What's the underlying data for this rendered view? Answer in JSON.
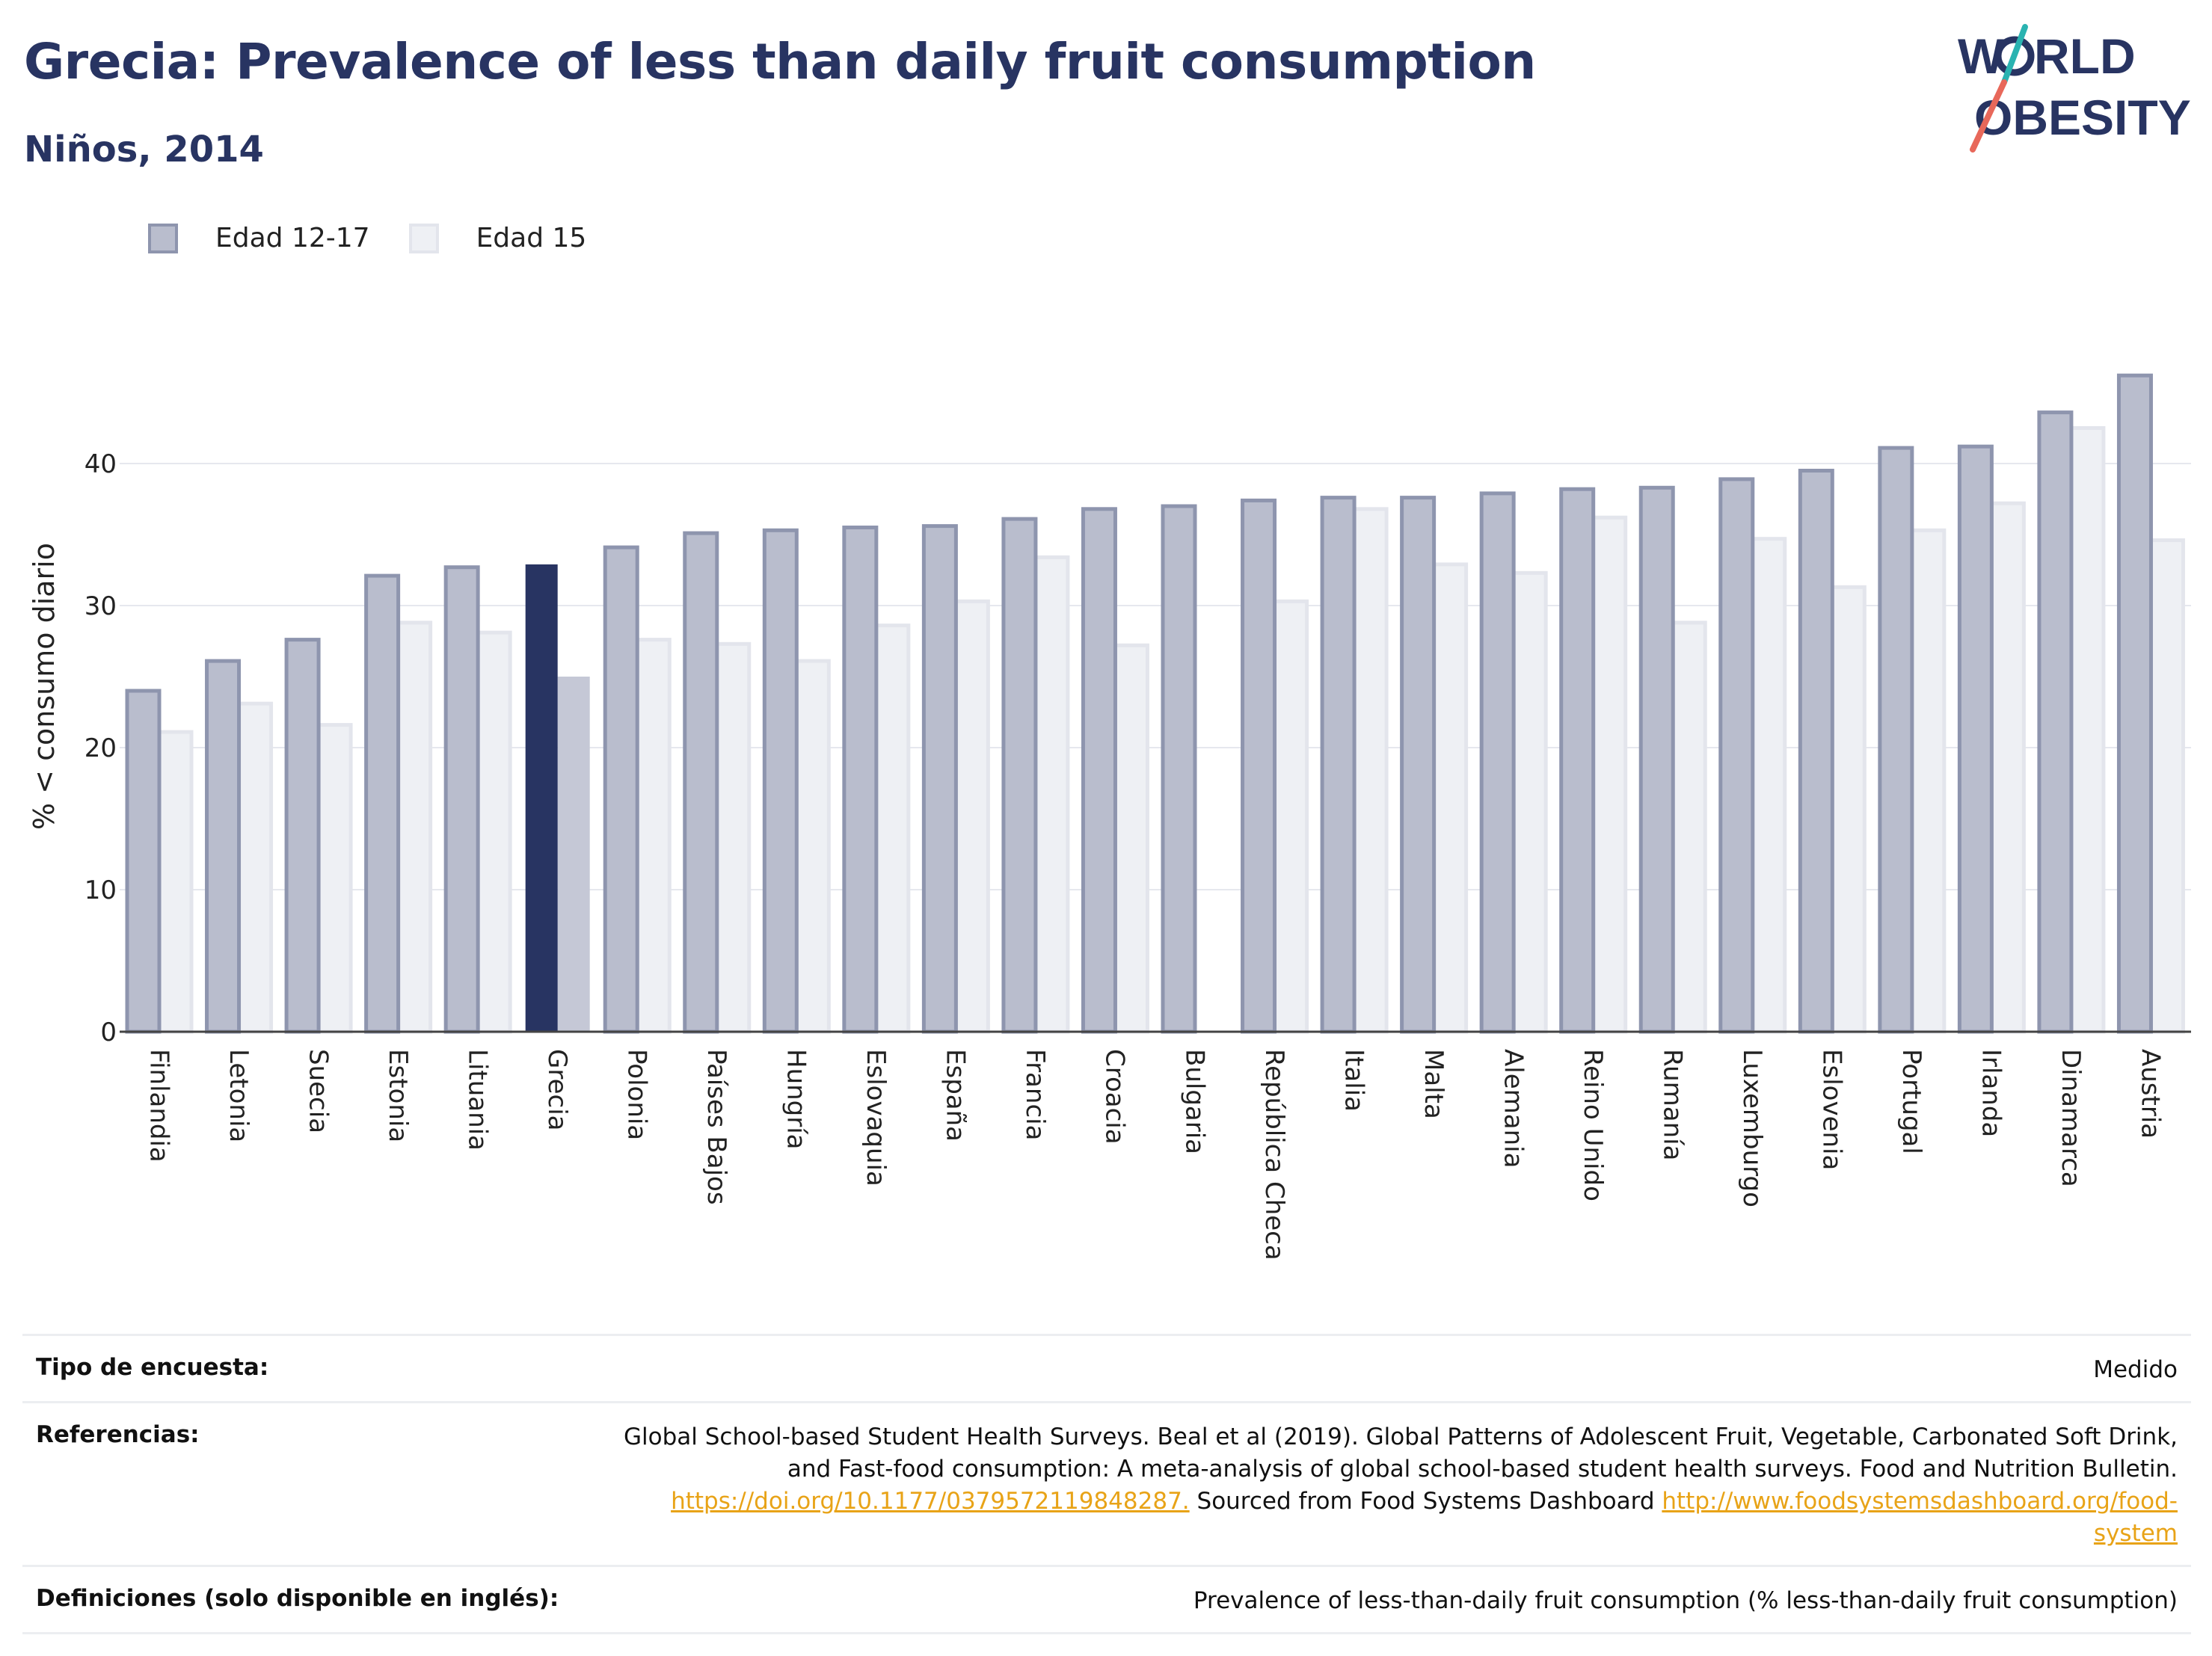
{
  "header": {
    "title": "Grecia: Prevalence of less than daily fruit consumption",
    "subtitle": "Niños, 2014",
    "logo_text": [
      "W",
      "RLD",
      "OBESITY"
    ]
  },
  "colors": {
    "series1_fill": "#b9bdcd",
    "series1_stroke": "#8e95ae",
    "series2_fill": "#eef0f4",
    "series2_stroke": "#e3e5ec",
    "highlight1": "#283462",
    "highlight2": "#c5c8d6",
    "title": "#283462",
    "link": "#e8a317",
    "logo_teal": "#2ab3b1",
    "logo_coral": "#e8685a"
  },
  "chart_data": {
    "type": "bar",
    "ylabel": "% < consumo diario",
    "xlabel": "",
    "ylim": [
      0,
      50
    ],
    "yticks": [
      0,
      10,
      20,
      30,
      40
    ],
    "grid": true,
    "legend_position": "top-left",
    "highlight": "Grecia",
    "categories": [
      "Finlandia",
      "Letonia",
      "Suecia",
      "Estonia",
      "Lituania",
      "Grecia",
      "Polonia",
      "Países Bajos",
      "Hungría",
      "Eslovaquia",
      "España",
      "Francia",
      "Croacia",
      "Bulgaria",
      "República Checa",
      "Italia",
      "Malta",
      "Alemania",
      "Reino Unido",
      "Rumanía",
      "Luxemburgo",
      "Eslovenia",
      "Portugal",
      "Irlanda",
      "Dinamarca",
      "Austria"
    ],
    "series": [
      {
        "name": "Edad 12-17",
        "values": [
          24.0,
          26.1,
          27.6,
          32.1,
          32.7,
          32.9,
          34.1,
          35.1,
          35.3,
          35.5,
          35.6,
          36.1,
          36.8,
          37.0,
          37.4,
          37.6,
          37.6,
          37.9,
          38.2,
          38.3,
          38.9,
          39.5,
          41.1,
          41.2,
          43.6,
          46.2
        ]
      },
      {
        "name": "Edad 15",
        "values": [
          21.1,
          23.1,
          21.6,
          28.8,
          28.1,
          25.0,
          27.6,
          27.3,
          26.1,
          28.6,
          30.3,
          33.4,
          27.2,
          null,
          30.3,
          36.8,
          32.9,
          32.3,
          36.2,
          28.8,
          34.7,
          31.3,
          35.3,
          37.2,
          42.5,
          34.6
        ]
      }
    ]
  },
  "footer": {
    "survey_label": "Tipo de encuesta:",
    "survey_value": "Medido",
    "refs_label": "Referencias:",
    "refs_text1": "Global School-based Student Health Surveys. Beal et al (2019). Global Patterns of Adolescent Fruit, Vegetable, Carbonated Soft Drink, and Fast-food consumption: A meta-analysis of global school-based student health surveys. Food and Nutrition Bulletin.",
    "refs_link1": "https://doi.org/10.1177/0379572119848287.",
    "refs_text2": "Sourced from Food Systems Dashboard",
    "refs_link2": "http://www.foodsystemsdashboard.org/food-system",
    "defs_label": "Definiciones (solo disponible en inglés):",
    "defs_value": "Prevalence of less-than-daily fruit consumption (% less-than-daily fruit consumption)"
  }
}
